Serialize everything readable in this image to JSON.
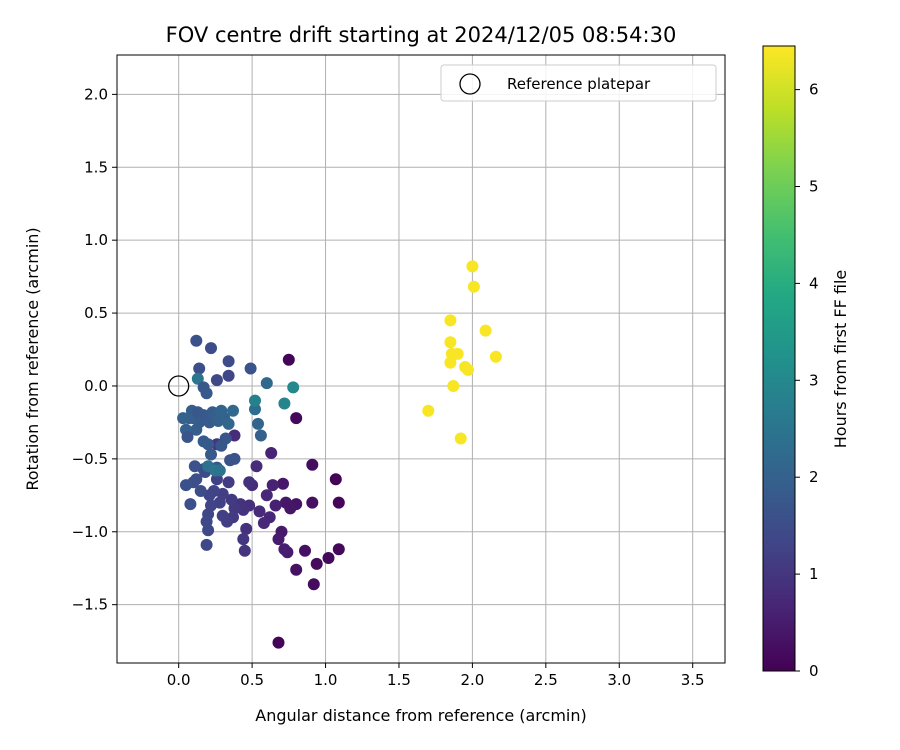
{
  "chart_data": {
    "type": "scatter",
    "title": "FOV centre drift starting at 2024/12/05 08:54:30",
    "xlabel": "Angular distance from reference (arcmin)",
    "ylabel": "Rotation from reference (arcmin)",
    "xlim": [
      -0.42,
      3.72
    ],
    "ylim": [
      -1.9,
      2.27
    ],
    "xticks": [
      0.0,
      0.5,
      1.0,
      1.5,
      2.0,
      2.5,
      3.0,
      3.5
    ],
    "xtick_labels": [
      "0.0",
      "0.5",
      "1.0",
      "1.5",
      "2.0",
      "2.5",
      "3.0",
      "3.5"
    ],
    "yticks": [
      -1.5,
      -1.0,
      -0.5,
      0.0,
      0.5,
      1.0,
      1.5,
      2.0
    ],
    "ytick_labels": [
      "−1.5",
      "−1.0",
      "−0.5",
      "0.0",
      "0.5",
      "1.0",
      "1.5",
      "2.0"
    ],
    "grid": true,
    "legend": {
      "position": "top-right",
      "label": "Reference platepar"
    },
    "reference_point": {
      "x": 0.0,
      "y": 0.0
    },
    "colorbar": {
      "label": "Hours from first FF file",
      "colormap": "viridis",
      "range": [
        0,
        6.45
      ],
      "ticks": [
        0,
        1,
        2,
        3,
        4,
        5,
        6
      ],
      "tick_labels": [
        "0",
        "1",
        "2",
        "3",
        "4",
        "5",
        "6"
      ]
    },
    "points": [
      [
        0.68,
        -1.76,
        0.05
      ],
      [
        0.75,
        0.18,
        0.05
      ],
      [
        1.07,
        -0.64,
        0.08
      ],
      [
        1.09,
        -0.8,
        0.1
      ],
      [
        1.09,
        -1.12,
        0.12
      ],
      [
        1.02,
        -1.18,
        0.15
      ],
      [
        0.94,
        -1.22,
        0.18
      ],
      [
        0.92,
        -1.36,
        0.2
      ],
      [
        0.91,
        -0.54,
        0.22
      ],
      [
        0.91,
        -0.8,
        0.25
      ],
      [
        0.86,
        -1.13,
        0.28
      ],
      [
        0.8,
        -1.26,
        0.3
      ],
      [
        0.8,
        -0.22,
        0.15
      ],
      [
        0.8,
        -0.81,
        0.35
      ],
      [
        0.76,
        -0.84,
        0.38
      ],
      [
        0.73,
        -0.8,
        0.4
      ],
      [
        0.71,
        -0.67,
        0.42
      ],
      [
        0.7,
        -1.0,
        0.45
      ],
      [
        0.68,
        -1.05,
        0.48
      ],
      [
        0.74,
        -1.14,
        0.5
      ],
      [
        0.72,
        -1.12,
        0.55
      ],
      [
        0.66,
        -0.82,
        0.58
      ],
      [
        0.64,
        -0.68,
        0.6
      ],
      [
        0.63,
        -0.46,
        0.65
      ],
      [
        0.62,
        -0.9,
        0.7
      ],
      [
        0.6,
        -0.75,
        0.72
      ],
      [
        0.58,
        -0.94,
        0.75
      ],
      [
        0.55,
        -0.86,
        0.78
      ],
      [
        0.53,
        -0.55,
        0.8
      ],
      [
        0.5,
        -0.68,
        0.82
      ],
      [
        0.48,
        -0.82,
        0.85
      ],
      [
        0.48,
        -0.66,
        0.88
      ],
      [
        0.46,
        -0.98,
        0.9
      ],
      [
        0.44,
        -0.85,
        0.92
      ],
      [
        0.42,
        -0.81,
        0.95
      ],
      [
        0.45,
        -1.13,
        0.98
      ],
      [
        0.44,
        -1.05,
        1.0
      ],
      [
        0.38,
        -0.34,
        0.8
      ],
      [
        0.38,
        -0.84,
        1.05
      ],
      [
        0.37,
        -0.9,
        1.08
      ],
      [
        0.36,
        -0.78,
        1.1
      ],
      [
        0.34,
        -0.66,
        1.12
      ],
      [
        0.33,
        -0.93,
        1.15
      ],
      [
        0.3,
        -0.74,
        1.18
      ],
      [
        0.3,
        -0.89,
        1.2
      ],
      [
        0.28,
        -0.8,
        1.22
      ],
      [
        0.26,
        -0.64,
        1.25
      ],
      [
        0.26,
        -0.4,
        1.0
      ],
      [
        0.24,
        -0.72,
        1.28
      ],
      [
        0.22,
        -0.82,
        1.3
      ],
      [
        0.21,
        -0.75,
        1.32
      ],
      [
        0.2,
        -0.88,
        1.35
      ],
      [
        0.2,
        -0.99,
        1.38
      ],
      [
        0.19,
        -1.09,
        1.4
      ],
      [
        0.19,
        -0.93,
        1.42
      ],
      [
        0.18,
        -0.59,
        1.45
      ],
      [
        0.17,
        -0.57,
        1.48
      ],
      [
        0.15,
        -0.72,
        1.5
      ],
      [
        0.12,
        -0.64,
        1.52
      ],
      [
        0.1,
        -0.66,
        1.55
      ],
      [
        0.08,
        -0.81,
        1.58
      ],
      [
        0.05,
        -0.68,
        1.6
      ],
      [
        0.11,
        -0.55,
        1.62
      ],
      [
        0.35,
        -0.51,
        1.65
      ],
      [
        0.38,
        -0.5,
        1.68
      ],
      [
        0.32,
        -0.36,
        1.7
      ],
      [
        0.29,
        -0.41,
        1.72
      ],
      [
        0.26,
        -0.56,
        1.75
      ],
      [
        0.22,
        -0.47,
        1.78
      ],
      [
        0.2,
        -0.4,
        1.8
      ],
      [
        0.17,
        -0.38,
        1.82
      ],
      [
        0.14,
        -0.25,
        1.85
      ],
      [
        0.12,
        -0.3,
        1.88
      ],
      [
        0.1,
        -0.22,
        1.9
      ],
      [
        0.09,
        -0.17,
        1.92
      ],
      [
        0.07,
        -0.22,
        1.95
      ],
      [
        0.05,
        -0.3,
        1.98
      ],
      [
        0.03,
        -0.22,
        2.0
      ],
      [
        0.06,
        -0.35,
        1.7
      ],
      [
        0.13,
        -0.18,
        1.75
      ],
      [
        0.17,
        -0.2,
        1.8
      ],
      [
        0.21,
        -0.25,
        1.85
      ],
      [
        0.23,
        -0.18,
        1.9
      ],
      [
        0.25,
        -0.21,
        1.95
      ],
      [
        0.27,
        -0.24,
        2.0
      ],
      [
        0.31,
        -0.22,
        2.05
      ],
      [
        0.29,
        -0.17,
        2.1
      ],
      [
        0.34,
        -0.26,
        2.15
      ],
      [
        0.37,
        -0.17,
        2.2
      ],
      [
        0.12,
        0.31,
        1.6
      ],
      [
        0.22,
        0.26,
        1.5
      ],
      [
        0.14,
        0.12,
        1.55
      ],
      [
        0.34,
        0.17,
        1.45
      ],
      [
        0.26,
        0.04,
        1.4
      ],
      [
        0.34,
        0.07,
        1.35
      ],
      [
        0.49,
        0.12,
        1.65
      ],
      [
        0.13,
        0.05,
        2.5
      ],
      [
        0.17,
        -0.01,
        1.75
      ],
      [
        0.19,
        -0.05,
        1.8
      ],
      [
        0.6,
        0.02,
        2.2
      ],
      [
        0.54,
        -0.26,
        2.1
      ],
      [
        0.56,
        -0.34,
        2.0
      ],
      [
        0.52,
        -0.16,
        2.3
      ],
      [
        0.52,
        -0.1,
        2.8
      ],
      [
        0.72,
        -0.12,
        2.9
      ],
      [
        0.78,
        -0.01,
        3.0
      ],
      [
        0.2,
        -0.55,
        2.4
      ],
      [
        0.25,
        -0.58,
        2.55
      ],
      [
        0.28,
        -0.58,
        2.45
      ],
      [
        1.7,
        -0.17,
        6.4
      ],
      [
        1.85,
        0.45,
        6.4
      ],
      [
        1.85,
        0.3,
        6.4
      ],
      [
        1.86,
        0.22,
        6.4
      ],
      [
        1.85,
        0.16,
        6.4
      ],
      [
        1.9,
        0.22,
        6.4
      ],
      [
        1.87,
        0.0,
        6.4
      ],
      [
        1.92,
        -0.36,
        6.4
      ],
      [
        1.95,
        0.13,
        6.4
      ],
      [
        1.97,
        0.11,
        6.4
      ],
      [
        2.0,
        0.82,
        6.4
      ],
      [
        2.01,
        0.68,
        6.4
      ],
      [
        2.09,
        0.38,
        6.4
      ],
      [
        2.16,
        0.2,
        6.4
      ]
    ]
  }
}
